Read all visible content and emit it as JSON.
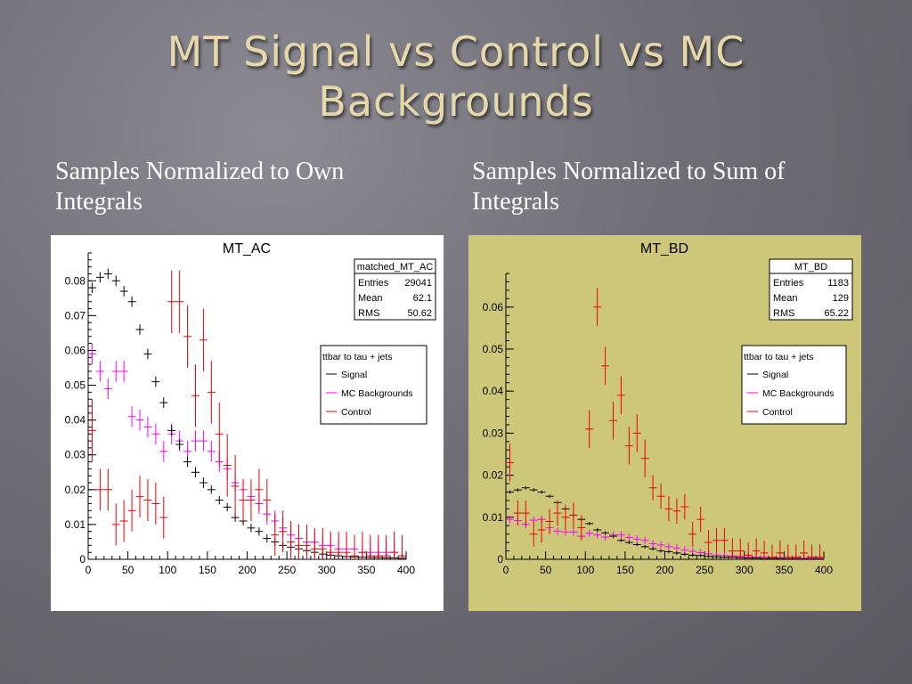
{
  "slide": {
    "title_line1": "MT Signal vs Control vs MC",
    "title_line2": "Backgrounds",
    "left_caption": "Samples Normalized to Own Integrals",
    "right_caption": "Samples Normalized to Sum of Integrals"
  },
  "colors": {
    "signal": "#000000",
    "mc": "#ff00ff",
    "control": "#ee0000"
  },
  "chart_data": [
    {
      "type": "scatter",
      "title": "MT_AC",
      "xlabel": "",
      "ylabel": "",
      "xlim": [
        0,
        400
      ],
      "ylim": [
        0,
        0.088
      ],
      "x_ticks": [
        0,
        50,
        100,
        150,
        200,
        250,
        300,
        350,
        400
      ],
      "y_ticks": [
        0,
        0.01,
        0.02,
        0.03,
        0.04,
        0.05,
        0.06,
        0.07,
        0.08
      ],
      "y_tick_labels": [
        "0",
        "0.01",
        "0.02",
        "0.03",
        "0.04",
        "0.05",
        "0.06",
        "0.07",
        "0.08"
      ],
      "stats": {
        "name": "matched_MT_AC",
        "entries": "29041",
        "mean": "62.1",
        "rms": "50.62",
        "labels": {
          "entries": "Entries",
          "mean": "Mean",
          "rms": "RMS"
        }
      },
      "legend": {
        "header": "ttbar to tau + jets",
        "placement": "right",
        "entries": [
          "Signal",
          "MC Backgrounds",
          "Control"
        ]
      },
      "series": [
        {
          "name": "Signal",
          "color": "#000000",
          "err": [
            0.0012,
            0.0015
          ],
          "points": [
            [
              5,
              0.078
            ],
            [
              15,
              0.081
            ],
            [
              25,
              0.082
            ],
            [
              35,
              0.08
            ],
            [
              45,
              0.077
            ],
            [
              55,
              0.074
            ],
            [
              65,
              0.066
            ],
            [
              75,
              0.059
            ],
            [
              85,
              0.051
            ],
            [
              95,
              0.045
            ],
            [
              105,
              0.037
            ],
            [
              115,
              0.033
            ],
            [
              125,
              0.028
            ],
            [
              135,
              0.025
            ],
            [
              145,
              0.022
            ],
            [
              155,
              0.02
            ],
            [
              165,
              0.017
            ],
            [
              175,
              0.015
            ],
            [
              185,
              0.012
            ],
            [
              195,
              0.011
            ],
            [
              205,
              0.009
            ],
            [
              215,
              0.008
            ],
            [
              225,
              0.006
            ],
            [
              235,
              0.005
            ],
            [
              245,
              0.004
            ],
            [
              255,
              0.0035
            ],
            [
              265,
              0.003
            ],
            [
              275,
              0.0025
            ],
            [
              285,
              0.002
            ],
            [
              295,
              0.0015
            ],
            [
              305,
              0.0012
            ],
            [
              315,
              0.001
            ],
            [
              325,
              0.0008
            ],
            [
              335,
              0.0007
            ],
            [
              345,
              0.0006
            ],
            [
              355,
              0.0005
            ],
            [
              365,
              0.0005
            ],
            [
              375,
              0.0004
            ],
            [
              385,
              0.0004
            ],
            [
              395,
              0.0003
            ]
          ]
        },
        {
          "name": "MC Backgrounds",
          "color": "#ff00ff",
          "err": [
            0.003,
            0.003
          ],
          "points": [
            [
              5,
              0.059
            ],
            [
              15,
              0.054
            ],
            [
              25,
              0.049
            ],
            [
              35,
              0.054
            ],
            [
              45,
              0.054
            ],
            [
              55,
              0.041
            ],
            [
              65,
              0.04
            ],
            [
              75,
              0.038
            ],
            [
              85,
              0.036
            ],
            [
              95,
              0.031
            ],
            [
              105,
              0.036
            ],
            [
              115,
              0.034
            ],
            [
              125,
              0.031
            ],
            [
              135,
              0.034
            ],
            [
              145,
              0.034
            ],
            [
              155,
              0.031
            ],
            [
              165,
              0.028
            ],
            [
              175,
              0.026
            ],
            [
              185,
              0.022
            ],
            [
              195,
              0.02
            ],
            [
              205,
              0.018
            ],
            [
              215,
              0.016
            ],
            [
              225,
              0.013
            ],
            [
              235,
              0.011
            ],
            [
              245,
              0.009
            ],
            [
              255,
              0.007
            ],
            [
              265,
              0.006
            ],
            [
              275,
              0.005
            ],
            [
              285,
              0.005
            ],
            [
              295,
              0.004
            ],
            [
              305,
              0.004
            ],
            [
              315,
              0.003
            ],
            [
              325,
              0.003
            ],
            [
              335,
              0.003
            ],
            [
              345,
              0.002
            ],
            [
              355,
              0.002
            ],
            [
              365,
              0.002
            ],
            [
              375,
              0.002
            ],
            [
              385,
              0.002
            ],
            [
              395,
              0.001
            ]
          ]
        },
        {
          "name": "Control",
          "color": "#ee0000",
          "err": [
            0.006,
            0.009
          ],
          "points": [
            [
              5,
              0.037
            ],
            [
              15,
              0.02
            ],
            [
              25,
              0.02
            ],
            [
              35,
              0.01
            ],
            [
              45,
              0.011
            ],
            [
              55,
              0.014
            ],
            [
              65,
              0.018
            ],
            [
              75,
              0.017
            ],
            [
              85,
              0.016
            ],
            [
              95,
              0.012
            ],
            [
              105,
              0.074
            ],
            [
              115,
              0.074
            ],
            [
              125,
              0.064
            ],
            [
              135,
              0.047
            ],
            [
              145,
              0.063
            ],
            [
              155,
              0.048
            ],
            [
              165,
              0.036
            ],
            [
              175,
              0.027
            ],
            [
              185,
              0.021
            ],
            [
              195,
              0.017
            ],
            [
              205,
              0.017
            ],
            [
              215,
              0.02
            ],
            [
              225,
              0.017
            ],
            [
              235,
              0.007
            ],
            [
              245,
              0.008
            ],
            [
              255,
              0.005
            ],
            [
              265,
              0.004
            ],
            [
              275,
              0.004
            ],
            [
              285,
              0.003
            ],
            [
              295,
              0.003
            ],
            [
              305,
              0.002
            ],
            [
              315,
              0.002
            ],
            [
              325,
              0.002
            ],
            [
              335,
              0.001
            ],
            [
              345,
              0.002
            ],
            [
              355,
              0.001
            ],
            [
              365,
              0.001
            ],
            [
              375,
              0.001
            ],
            [
              385,
              0.002
            ],
            [
              395,
              0.001
            ]
          ]
        }
      ]
    },
    {
      "type": "scatter",
      "title": "MT_BD",
      "xlabel": "",
      "ylabel": "",
      "xlim": [
        0,
        400
      ],
      "ylim": [
        0,
        0.068
      ],
      "x_ticks": [
        0,
        50,
        100,
        150,
        200,
        250,
        300,
        350,
        400
      ],
      "y_ticks": [
        0,
        0.01,
        0.02,
        0.03,
        0.04,
        0.05,
        0.06
      ],
      "y_tick_labels": [
        "0",
        "0.01",
        "0.02",
        "0.03",
        "0.04",
        "0.05",
        "0.06"
      ],
      "stats": {
        "name": "MT_BD",
        "entries": "1183",
        "mean": "129",
        "rms": "65.22",
        "labels": {
          "entries": "Entries",
          "mean": "Mean",
          "rms": "RMS"
        }
      },
      "legend": {
        "header": "ttbar to tau + jets",
        "placement": "right",
        "entries": [
          "Signal",
          "MC Backgrounds",
          "Control"
        ]
      },
      "series": [
        {
          "name": "Signal",
          "color": "#000000",
          "err": [
            0.0004,
            0.0006
          ],
          "points": [
            [
              5,
              0.016
            ],
            [
              15,
              0.0165
            ],
            [
              25,
              0.017
            ],
            [
              35,
              0.0165
            ],
            [
              45,
              0.016
            ],
            [
              55,
              0.015
            ],
            [
              65,
              0.0135
            ],
            [
              75,
              0.012
            ],
            [
              85,
              0.0105
            ],
            [
              95,
              0.0095
            ],
            [
              105,
              0.0085
            ],
            [
              115,
              0.007
            ],
            [
              125,
              0.0063
            ],
            [
              135,
              0.0055
            ],
            [
              145,
              0.0045
            ],
            [
              155,
              0.004
            ],
            [
              165,
              0.0035
            ],
            [
              175,
              0.003
            ],
            [
              185,
              0.0025
            ],
            [
              195,
              0.002
            ],
            [
              205,
              0.0018
            ],
            [
              215,
              0.0015
            ],
            [
              225,
              0.0012
            ],
            [
              235,
              0.001
            ],
            [
              245,
              0.0009
            ],
            [
              255,
              0.0007
            ],
            [
              265,
              0.0006
            ],
            [
              275,
              0.0005
            ],
            [
              285,
              0.0005
            ],
            [
              295,
              0.0004
            ],
            [
              305,
              0.0003
            ],
            [
              315,
              0.0003
            ],
            [
              325,
              0.0002
            ],
            [
              335,
              0.0002
            ],
            [
              345,
              0.0002
            ],
            [
              355,
              0.0001
            ],
            [
              365,
              0.0001
            ],
            [
              375,
              0.0001
            ],
            [
              385,
              0.0001
            ],
            [
              395,
              0.0001
            ]
          ]
        },
        {
          "name": "MC Backgrounds",
          "color": "#ff00ff",
          "err": [
            0.0009,
            0.0009
          ],
          "points": [
            [
              5,
              0.0095
            ],
            [
              15,
              0.0092
            ],
            [
              25,
              0.0083
            ],
            [
              35,
              0.0093
            ],
            [
              45,
              0.0095
            ],
            [
              55,
              0.0075
            ],
            [
              65,
              0.0067
            ],
            [
              75,
              0.0065
            ],
            [
              85,
              0.0065
            ],
            [
              95,
              0.0055
            ],
            [
              105,
              0.0062
            ],
            [
              115,
              0.0058
            ],
            [
              125,
              0.0053
            ],
            [
              135,
              0.0058
            ],
            [
              145,
              0.0058
            ],
            [
              155,
              0.0052
            ],
            [
              165,
              0.0048
            ],
            [
              175,
              0.0045
            ],
            [
              185,
              0.0037
            ],
            [
              195,
              0.0034
            ],
            [
              205,
              0.003
            ],
            [
              215,
              0.0027
            ],
            [
              225,
              0.0022
            ],
            [
              235,
              0.0019
            ],
            [
              245,
              0.0016
            ],
            [
              255,
              0.0013
            ],
            [
              265,
              0.001
            ],
            [
              275,
              0.0009
            ],
            [
              285,
              0.0008
            ],
            [
              295,
              0.0007
            ],
            [
              305,
              0.0006
            ],
            [
              315,
              0.0005
            ],
            [
              325,
              0.0005
            ],
            [
              335,
              0.0005
            ],
            [
              345,
              0.0004
            ],
            [
              355,
              0.0004
            ],
            [
              365,
              0.0003
            ],
            [
              375,
              0.0003
            ],
            [
              385,
              0.0003
            ],
            [
              395,
              0.0002
            ]
          ]
        },
        {
          "name": "Control",
          "color": "#ee0000",
          "err": [
            0.003,
            0.0045
          ],
          "points": [
            [
              5,
              0.023
            ],
            [
              15,
              0.011
            ],
            [
              25,
              0.011
            ],
            [
              35,
              0.006
            ],
            [
              45,
              0.007
            ],
            [
              55,
              0.009
            ],
            [
              65,
              0.011
            ],
            [
              75,
              0.01
            ],
            [
              85,
              0.0105
            ],
            [
              95,
              0.0075
            ],
            [
              105,
              0.031
            ],
            [
              115,
              0.06
            ],
            [
              125,
              0.046
            ],
            [
              135,
              0.033
            ],
            [
              145,
              0.039
            ],
            [
              155,
              0.027
            ],
            [
              165,
              0.03
            ],
            [
              175,
              0.024
            ],
            [
              185,
              0.017
            ],
            [
              195,
              0.015
            ],
            [
              205,
              0.012
            ],
            [
              215,
              0.0115
            ],
            [
              225,
              0.0125
            ],
            [
              235,
              0.006
            ],
            [
              245,
              0.0095
            ],
            [
              255,
              0.004
            ],
            [
              265,
              0.0045
            ],
            [
              275,
              0.0045
            ],
            [
              285,
              0.002
            ],
            [
              295,
              0.002
            ],
            [
              305,
              0.001
            ],
            [
              315,
              0.002
            ],
            [
              325,
              0.0015
            ],
            [
              335,
              0.0005
            ],
            [
              345,
              0.0015
            ],
            [
              355,
              0.0005
            ],
            [
              365,
              0.0005
            ],
            [
              375,
              0.0015
            ],
            [
              385,
              0.0005
            ],
            [
              395,
              0.0005
            ]
          ]
        }
      ]
    }
  ]
}
